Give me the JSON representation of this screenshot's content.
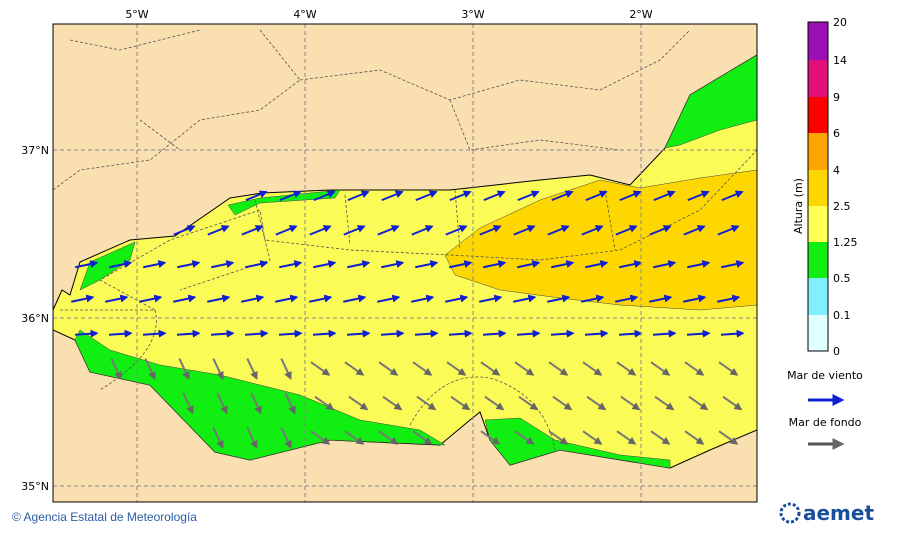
{
  "map": {
    "lon_labels": [
      "5°W",
      "4°W",
      "3°W",
      "2°W"
    ],
    "lat_labels": [
      "37°N",
      "36°N",
      "35°N"
    ]
  },
  "colorbar": {
    "title": "Altura (m)",
    "labels": [
      "20",
      "14",
      "9",
      "6",
      "4",
      "2.5",
      "1.25",
      "0.5",
      "0.1",
      "0"
    ]
  },
  "legend": {
    "wind_sea": "Mar de viento",
    "swell": "Mar de fondo"
  },
  "footer": {
    "credit": "© Agencia Estatal de Meteorología",
    "logo": "aemet"
  }
}
